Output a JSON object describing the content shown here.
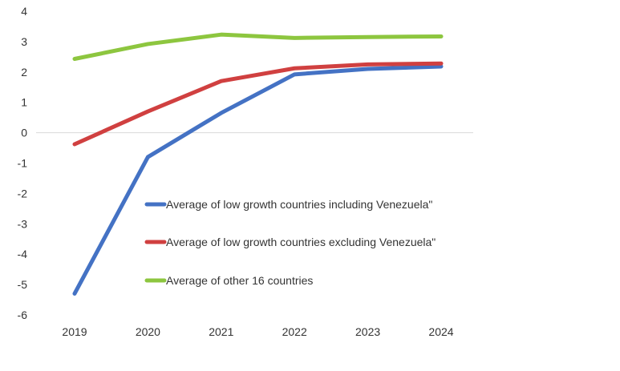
{
  "chart_data": {
    "type": "line",
    "categories": [
      "2019",
      "2020",
      "2021",
      "2022",
      "2023",
      "2024"
    ],
    "ylim": [
      -6,
      4
    ],
    "yticks": [
      "4",
      "3",
      "2",
      "1",
      "0",
      "-1",
      "-2",
      "-3",
      "-4",
      "-5",
      "-6"
    ],
    "grid": false,
    "zero_line": true,
    "legend_position": "inside-lower-center",
    "series": [
      {
        "name": "Average of low growth countries including Venezuela\"",
        "color": "#4472C4",
        "values": [
          -5.3,
          -0.8,
          0.65,
          1.92,
          2.1,
          2.18
        ]
      },
      {
        "name": "Average of low growth countries excluding Venezuela\"",
        "color": "#D04040",
        "values": [
          -0.38,
          0.7,
          1.7,
          2.12,
          2.25,
          2.28
        ]
      },
      {
        "name": "Average of other 16 countries",
        "color": "#8DC63F",
        "values": [
          2.43,
          2.92,
          3.23,
          3.12,
          3.15,
          3.17
        ]
      }
    ]
  }
}
